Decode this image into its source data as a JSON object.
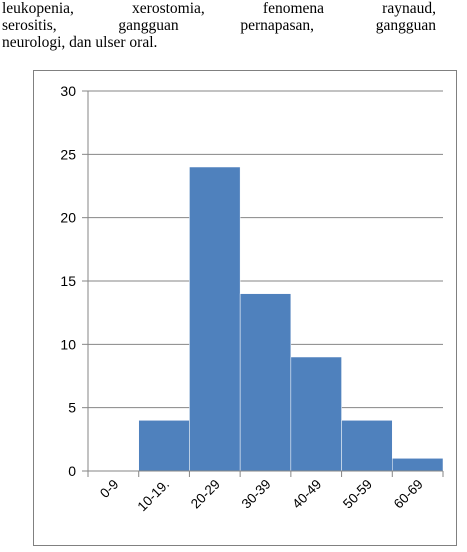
{
  "paragraph": {
    "line1": [
      "leukopenia,",
      "xerostomia,",
      "fenomena",
      "raynaud,"
    ],
    "line2": [
      "serositis,",
      "gangguan",
      "pernapasan,",
      "gangguan"
    ],
    "line3": "neurologi, dan ulser oral."
  },
  "chart_data": {
    "type": "bar",
    "categories": [
      "0-9",
      "10-19.",
      "20-29",
      "30-39",
      "40-49",
      "50-59",
      "60-69"
    ],
    "values": [
      0,
      4,
      24,
      14,
      9,
      4,
      1
    ],
    "ylim": [
      0,
      30
    ],
    "yticks": [
      0,
      5,
      10,
      15,
      20,
      25,
      30
    ],
    "grid": true,
    "bar_color": "#4f81bd",
    "gap": 0
  }
}
